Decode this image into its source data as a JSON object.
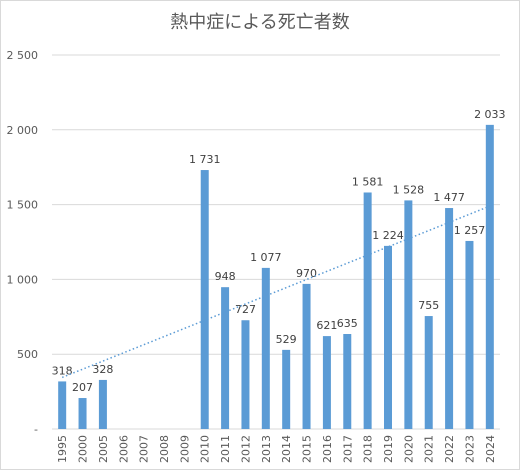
{
  "chart_data": {
    "type": "bar",
    "title": "熱中症による死亡者数",
    "categories": [
      "1995",
      "2000",
      "2005",
      "2006",
      "2007",
      "2008",
      "2009",
      "2010",
      "2011",
      "2012",
      "2013",
      "2014",
      "2015",
      "2016",
      "2017",
      "2018",
      "2019",
      "2020",
      "2021",
      "2022",
      "2023",
      "2024"
    ],
    "values": [
      318,
      207,
      328,
      null,
      null,
      null,
      null,
      1731,
      948,
      727,
      1077,
      529,
      970,
      621,
      635,
      1581,
      1224,
      1528,
      755,
      1477,
      1257,
      2033
    ],
    "data_labels": [
      "318",
      "207",
      "328",
      null,
      null,
      null,
      null,
      "1 731",
      "948",
      "727",
      "1 077",
      "529",
      "970",
      "621",
      "635",
      "1 581",
      "1 224",
      "1 528",
      "755",
      "1 477",
      "1 257",
      "2 033"
    ],
    "ylim": [
      0,
      2500
    ],
    "y_ticks": [
      0,
      500,
      1000,
      1500,
      2000,
      2500
    ],
    "y_tick_labels": [
      "-",
      "500",
      "1 000",
      "1 500",
      "2 000",
      "2 500"
    ],
    "trendline": {
      "type": "linear",
      "style": "dotted",
      "from": 345,
      "to": 1490
    },
    "grid": true,
    "bar_color": "#5b9bd5",
    "trend_color": "#5b9bd5",
    "xlabel": "",
    "ylabel": ""
  }
}
